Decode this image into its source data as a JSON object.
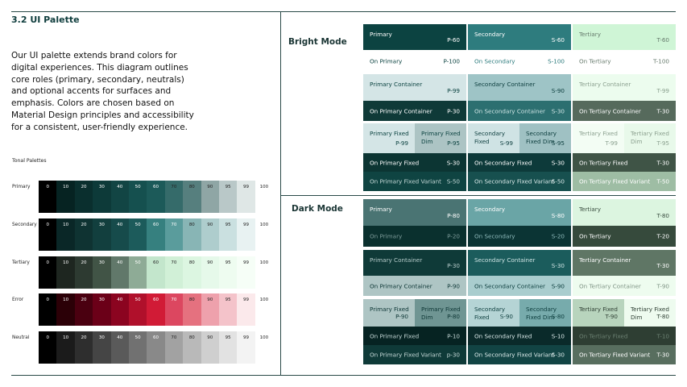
{
  "title": "3.2  UI Palette",
  "intro": "Our UI palette extends brand colors for digital experiences. This diagram outlines core roles (primary, secondary, neutrals) and optional accents for surfaces and emphasis. Colors are chosen based on Material Design principles and accessibility for a consistent, user-friendly experience.",
  "tonal": {
    "heading": "Tonal Palettes",
    "tones": [
      "0",
      "10",
      "20",
      "30",
      "40",
      "50",
      "60",
      "70",
      "80",
      "90",
      "95",
      "99",
      "100"
    ],
    "rows": [
      {
        "label": "Primary",
        "colors": [
          "#000000",
          "#062322",
          "#0a2f2e",
          "#0d3a39",
          "#124544",
          "#15504f",
          "#1c5a59",
          "#356b6a",
          "#567f7e",
          "#8fa6a5",
          "#b9c8c8",
          "#dfe7e6",
          "#ffffff"
        ],
        "light_from": 7
      },
      {
        "label": "Secondary",
        "colors": [
          "#000000",
          "#0a2727",
          "#0f3332",
          "#123f3e",
          "#164b4b",
          "#1c5b5b",
          "#36807f",
          "#5a9c9c",
          "#88b5b5",
          "#aecdcd",
          "#cae0e0",
          "#e8f2f2",
          "#ffffff"
        ],
        "light_from": 8
      },
      {
        "label": "Tertiary",
        "colors": [
          "#000000",
          "#1e2620",
          "#2d3a31",
          "#415446",
          "#61786a",
          "#8eab96",
          "#c3e6cc",
          "#d1f0d7",
          "#dcf6e1",
          "#e6f9ea",
          "#eefcf0",
          "#f6fef7",
          "#ffffff"
        ],
        "light_from": 6
      },
      {
        "label": "Error",
        "colors": [
          "#000000",
          "#2b0007",
          "#4a0010",
          "#6b0018",
          "#8b0420",
          "#b0102b",
          "#d11b36",
          "#dc4760",
          "#e5717f",
          "#eea1ac",
          "#f4c3ca",
          "#fbe9eb",
          "#ffffff"
        ],
        "light_from": 8
      },
      {
        "label": "Neutral",
        "colors": [
          "#000000",
          "#1b1b1b",
          "#2e2e2e",
          "#454545",
          "#5a5a5a",
          "#717171",
          "#898989",
          "#a2a2a2",
          "#b9b9b9",
          "#cfcfcf",
          "#e2e2e2",
          "#f3f3f3",
          "#ffffff"
        ],
        "light_from": 7
      }
    ]
  },
  "bright": {
    "label": "Bright Mode",
    "cols": [
      {
        "cells": [
          {
            "name": "Primary",
            "code": "P-60",
            "bg": "#0c4341",
            "fg": "#ffffff"
          },
          {
            "name": "On Primary",
            "code": "P-100",
            "bg": "#ffffff",
            "fg": "#0c4341"
          },
          {
            "name": "Primary Container",
            "code": "P-99",
            "bg": "#d4e5e6",
            "fg": "#0c4341"
          },
          {
            "name": "On Primary Container",
            "code": "P-30",
            "bg": "#0f3a38",
            "fg": "#ffffff"
          },
          {
            "name": "Primary Fixed",
            "code": "P-99",
            "bg": "#d4e5e6",
            "fg": "#0c4341",
            "name2": "Primary Fixed Dim",
            "code2": "P-95",
            "bg2": "#acc4c4"
          },
          {
            "name": "On Primary Fixed",
            "code": "S-30",
            "bg": "#0c3533",
            "fg": "#ffffff"
          },
          {
            "name": "On Primary Fixed Variant",
            "code": "S-50",
            "bg": "#0f4442",
            "fg": "#c4d7d6"
          }
        ]
      },
      {
        "cells": [
          {
            "name": "Secondary",
            "code": "S-60",
            "bg": "#2e7c7e",
            "fg": "#ffffff"
          },
          {
            "name": "On Secondary",
            "code": "S-100",
            "bg": "#ffffff",
            "fg": "#2e7c7e"
          },
          {
            "name": "Secondary Container",
            "code": "S-90",
            "bg": "#9ec4c6",
            "fg": "#0c3d3d"
          },
          {
            "name": "On Secondary Container",
            "code": "S-30",
            "bg": "#2c6f70",
            "fg": "#cde3e3"
          },
          {
            "name": "Secondary Fixed",
            "code": "S-99",
            "bg": "#cfe3e4",
            "fg": "#0c3d3d",
            "name2": "Secondary Fixed Dim",
            "code2": "S-95",
            "bg2": "#9fc1c3"
          },
          {
            "name": "On Secondary Fixed",
            "code": "S-30",
            "bg": "#0d3a3a",
            "fg": "#ffffff"
          },
          {
            "name": "On Secondary Fixed Variant",
            "code": "S-50",
            "bg": "#17504f",
            "fg": "#d8e7e7"
          }
        ]
      },
      {
        "cells": [
          {
            "name": "Tertiary",
            "code": "T-60",
            "bg": "#cff5d6",
            "fg": "#667a6c"
          },
          {
            "name": "On Tertiary",
            "code": "T-100",
            "bg": "#ffffff",
            "fg": "#667a6c"
          },
          {
            "name": "Tertiary Container",
            "code": "T-99",
            "bg": "#ecfcee",
            "fg": "#8ba08f"
          },
          {
            "name": "On Tertiary Container",
            "code": "T-30",
            "bg": "#566a5c",
            "fg": "#ffffff"
          },
          {
            "name": "Tertiary Fixed",
            "code": "T-99",
            "bg": "#f3fdf4",
            "fg": "#8ba08f",
            "name2": "Tertiary Fixed Dim",
            "code2": "T-95",
            "bg2": "#e8f9ea"
          },
          {
            "name": "On Tertiary Fixed",
            "code": "T-30",
            "bg": "#3f5446",
            "fg": "#ffffff"
          },
          {
            "name": "On Tertiary Fixed Variant",
            "code": "T-50",
            "bg": "#9ebda4",
            "fg": "#ffffff"
          }
        ]
      }
    ]
  },
  "dark": {
    "label": "Dark Mode",
    "cols": [
      {
        "cells": [
          {
            "name": "Primary",
            "code": "P-80",
            "bg": "#4a7473",
            "fg": "#ffffff"
          },
          {
            "name": "On Primary",
            "code": "P-20",
            "bg": "#0a302e",
            "fg": "#7d9b9a"
          },
          {
            "name": "Primary Container",
            "code": "P-30",
            "bg": "#0f3a38",
            "fg": "#b7cccb"
          },
          {
            "name": "On Primary Container",
            "code": "P-90",
            "bg": "#aec5c4",
            "fg": "#0c3534"
          },
          {
            "name": "Primary Fixed",
            "code": "P-90",
            "bg": "#aec5c4",
            "fg": "#0c3534",
            "name2": "Primary Fixed Dim",
            "code2": "P-80",
            "bg2": "#6f9593"
          },
          {
            "name": "On Primary Fixed",
            "code": "P-10",
            "bg": "#062322",
            "fg": "#c4d7d6"
          },
          {
            "name": "On Primary Fixed Variant",
            "code": "p-30",
            "bg": "#0f3a38",
            "fg": "#c4d7d6"
          }
        ]
      },
      {
        "cells": [
          {
            "name": "Secondary",
            "code": "S-80",
            "bg": "#6aa5a6",
            "fg": "#ffffff"
          },
          {
            "name": "On Secondary",
            "code": "S-20",
            "bg": "#0b3434",
            "fg": "#8db9ba"
          },
          {
            "name": "Secondary Container",
            "code": "S-30",
            "bg": "#1b5c5c",
            "fg": "#cde3e3"
          },
          {
            "name": "On Secondary Container",
            "code": "S-90",
            "bg": "#a9cdce",
            "fg": "#0c3d3d"
          },
          {
            "name": "Secondary Fixed",
            "code": "S-90",
            "bg": "#b5d4d5",
            "fg": "#0c3d3d",
            "name2": "Secondary Fixed Dim",
            "code2": "S-80",
            "bg2": "#77abac"
          },
          {
            "name": "On Secondary Fixed",
            "code": "S-10",
            "bg": "#0a2a2a",
            "fg": "#d8e7e7"
          },
          {
            "name": "On Secondary Fixed Variant",
            "code": "S-30",
            "bg": "#124444",
            "fg": "#d8e7e7"
          }
        ]
      },
      {
        "cells": [
          {
            "name": "Tertiary",
            "code": "T-80",
            "bg": "#dcf5e0",
            "fg": "#3a4e40"
          },
          {
            "name": "On Tertiary",
            "code": "T-20",
            "bg": "#364a3c",
            "fg": "#ffffff"
          },
          {
            "name": "Tertiary Container",
            "code": "T-30",
            "bg": "#5f7665",
            "fg": "#ffffff"
          },
          {
            "name": "On Tertiary Container",
            "code": "T-90",
            "bg": "#eefcef",
            "fg": "#7e9384"
          },
          {
            "name": "Tertiary Fixed",
            "code": "T-90",
            "bg": "#b8d4bd",
            "fg": "#2e3f33",
            "name2": "Tertiary Fixed Dim",
            "code2": "T-80",
            "bg2": "#eefbef"
          },
          {
            "name": "On Tertiary Fixed",
            "code": "T-10",
            "bg": "#2e3e33",
            "fg": "#6c8172"
          },
          {
            "name": "On Tertiary Fixed Variant",
            "code": "T-30",
            "bg": "#586e5f",
            "fg": "#ffffff"
          }
        ]
      }
    ]
  }
}
